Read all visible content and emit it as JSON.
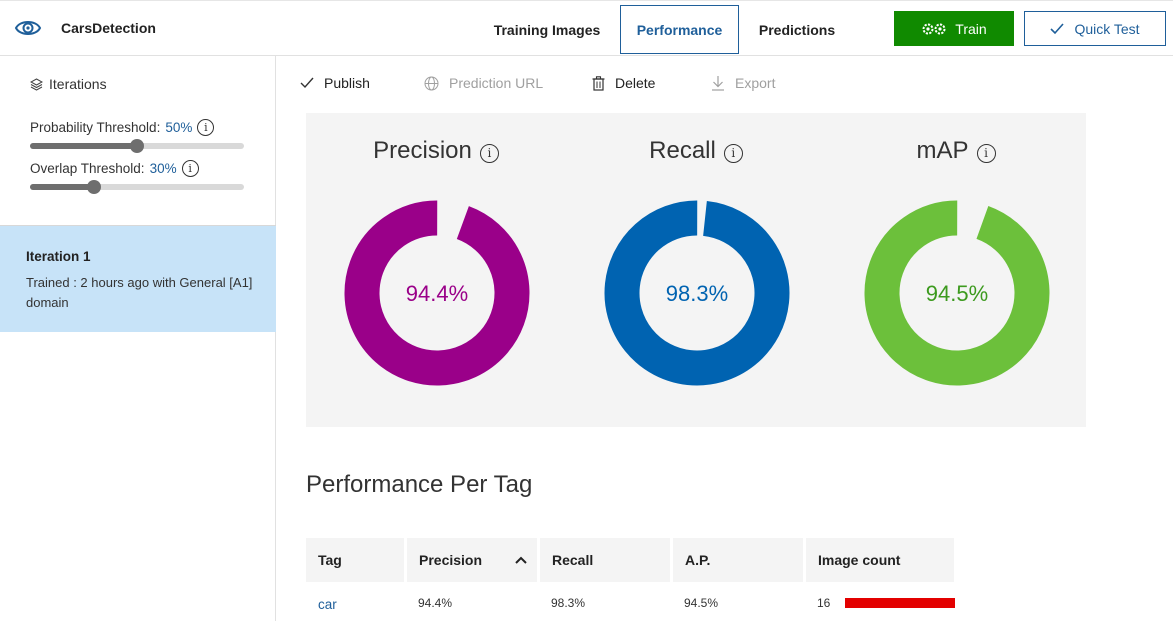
{
  "header": {
    "project_name": "CarsDetection",
    "tabs": [
      {
        "label": "Training Images"
      },
      {
        "label": "Performance"
      },
      {
        "label": "Predictions"
      }
    ],
    "train_label": "Train",
    "quick_test_label": "Quick Test",
    "colors": {
      "accent": "#1f5f9a",
      "train_bg": "#108a00"
    }
  },
  "sidebar": {
    "iterations_label": "Iterations",
    "probability_threshold": {
      "label": "Probability Threshold:",
      "value": "50%",
      "level": 0.5
    },
    "overlap_threshold": {
      "label": "Overlap Threshold:",
      "value": "30%",
      "level": 0.3
    },
    "iteration": {
      "title": "Iteration 1",
      "description": "Trained : 2 hours ago with General [A1] domain"
    }
  },
  "toolbar": {
    "publish": "Publish",
    "prediction_url": "Prediction URL",
    "delete": "Delete",
    "export": "Export"
  },
  "metrics": [
    {
      "title": "Precision",
      "value": "94.4%",
      "fraction": 0.944,
      "color": "#9a0089"
    },
    {
      "title": "Recall",
      "value": "98.3%",
      "fraction": 0.983,
      "color": "#0063b1"
    },
    {
      "title": "mAP",
      "value": "94.5%",
      "fraction": 0.945,
      "color": "#6cc03b",
      "text_color": "#3c9a1e"
    }
  ],
  "per_tag": {
    "title": "Performance Per Tag",
    "columns": [
      "Tag",
      "Precision",
      "Recall",
      "A.P.",
      "Image count"
    ],
    "rows": [
      {
        "tag": "car",
        "precision": "94.4%",
        "recall": "98.3%",
        "ap": "94.5%",
        "image_count": "16",
        "bar_color": "#e30000"
      }
    ]
  }
}
